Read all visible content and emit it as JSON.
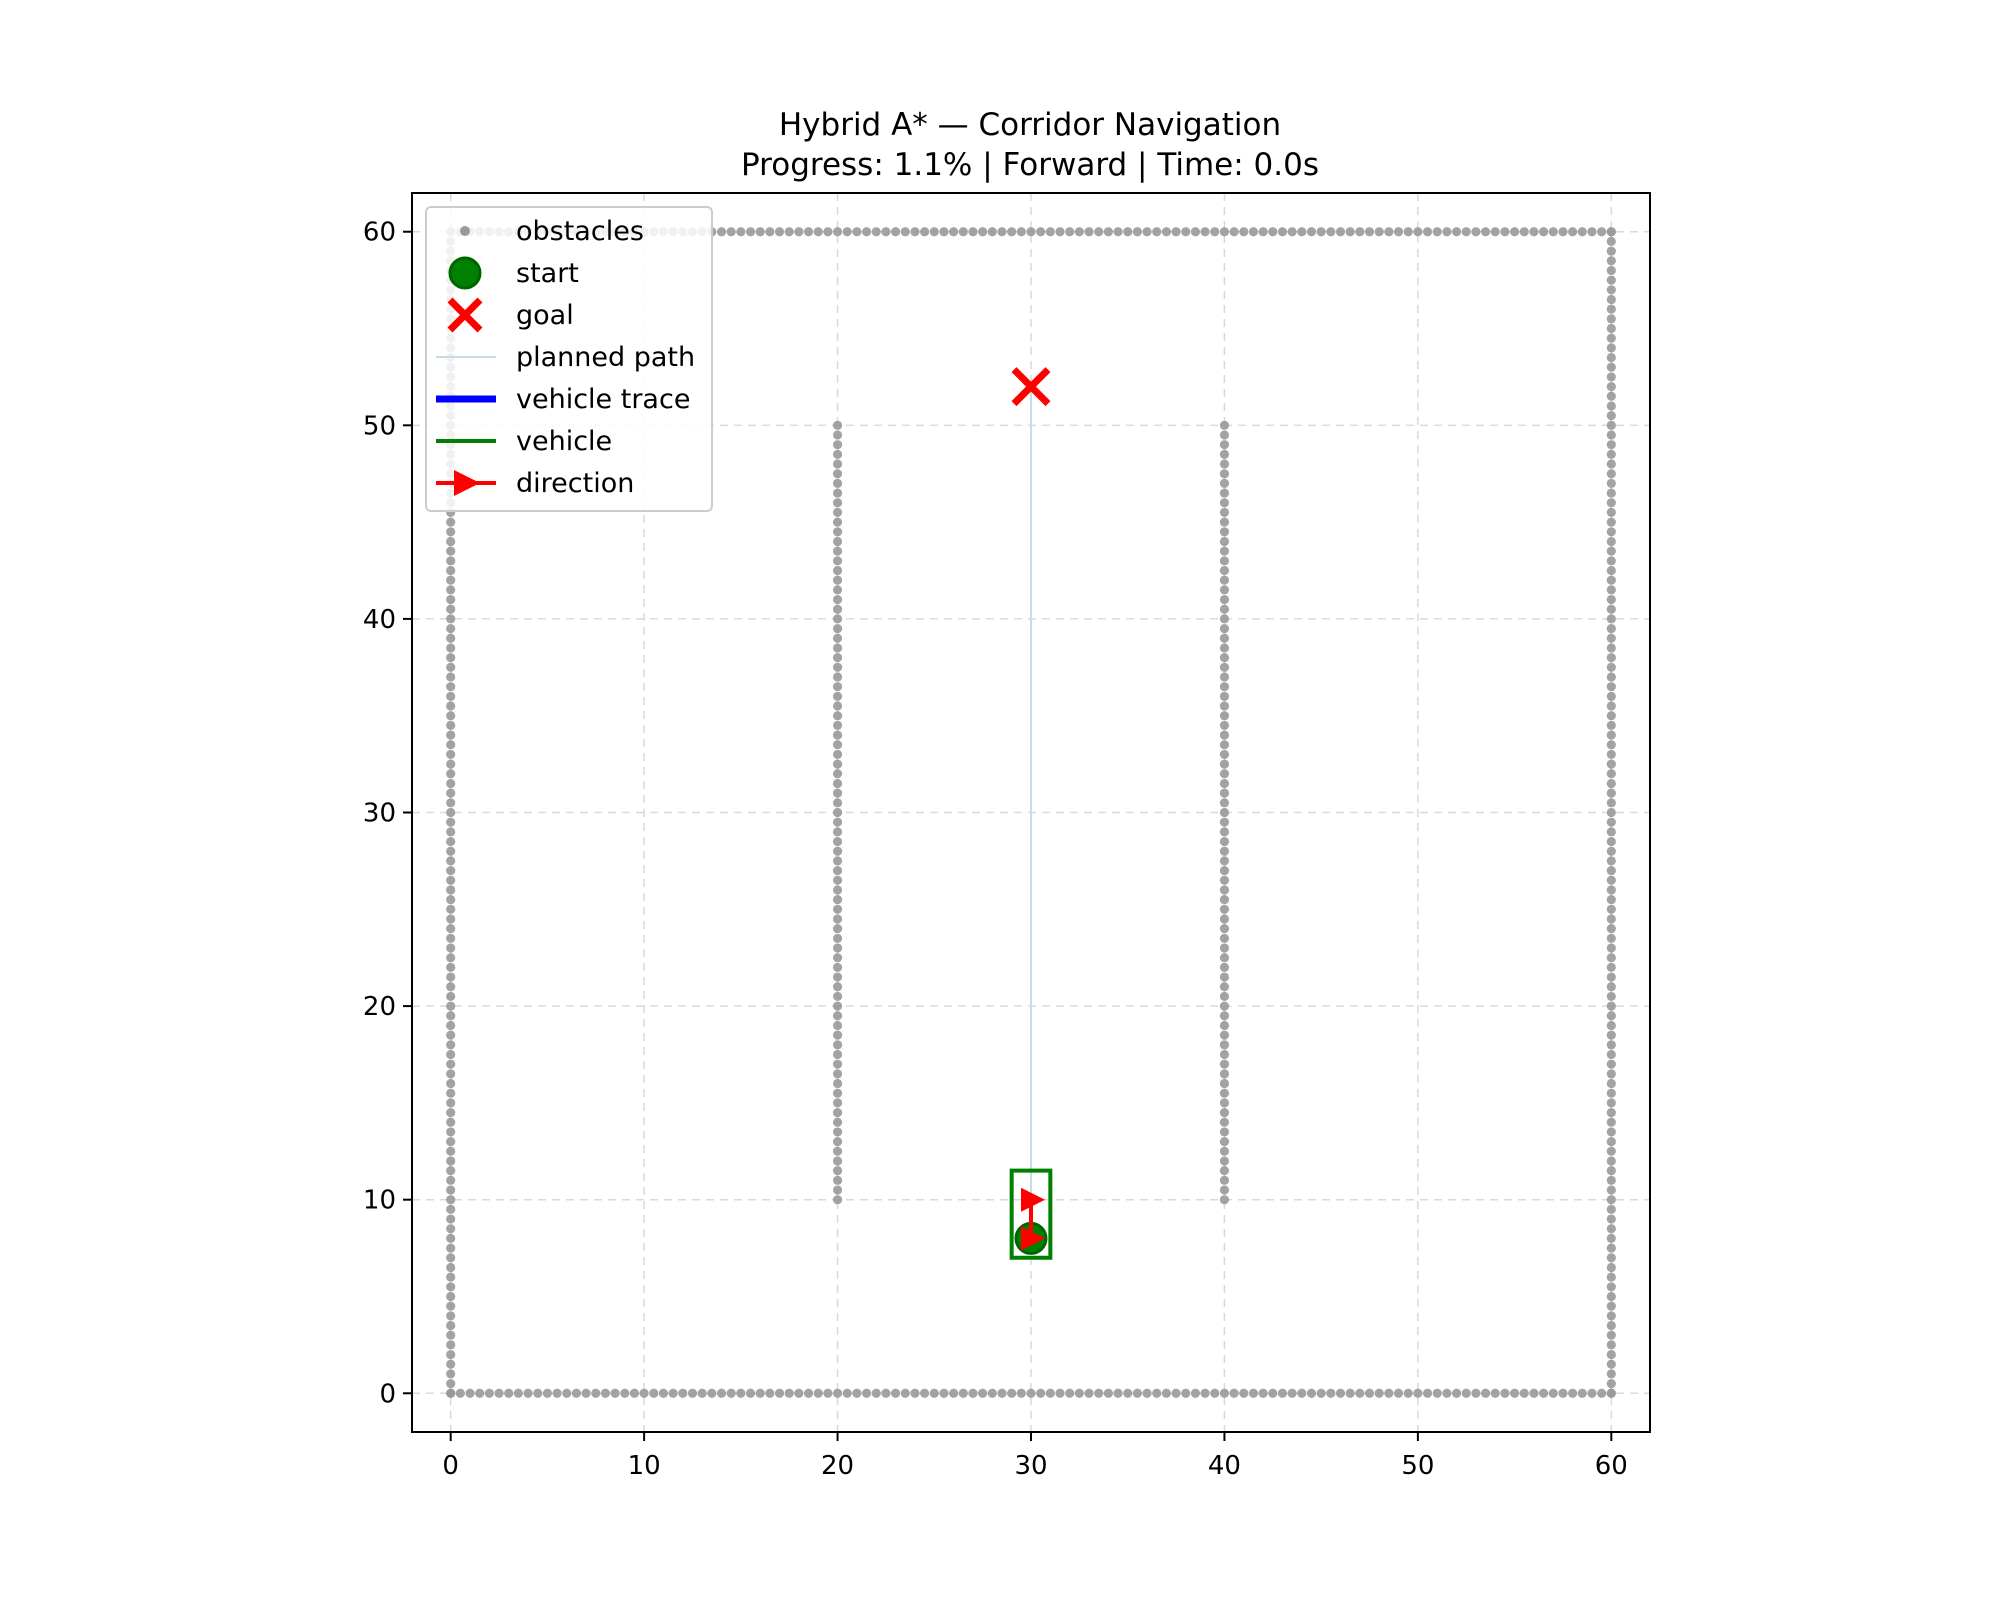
{
  "chart_data": {
    "type": "scatter",
    "title": "Hybrid A* — Corridor Navigation",
    "subtitle": "Progress: 1.1% | Forward | Time: 0.0s",
    "xlabel": "",
    "ylabel": "",
    "xlim": [
      -2,
      62
    ],
    "ylim": [
      -2,
      62
    ],
    "xticks": [
      0,
      10,
      20,
      30,
      40,
      50,
      60
    ],
    "yticks": [
      0,
      10,
      20,
      30,
      40,
      50,
      60
    ],
    "grid": true,
    "legend_position": "top-left",
    "legend": [
      {
        "label": "obstacles",
        "marker": "dot",
        "color": "#999999"
      },
      {
        "label": "start",
        "marker": "circle",
        "color": "#008000"
      },
      {
        "label": "goal",
        "marker": "x",
        "color": "#ff0000"
      },
      {
        "label": "planned path",
        "marker": "line-thin",
        "color": "#add8e6"
      },
      {
        "label": "vehicle trace",
        "marker": "line-thick",
        "color": "#0000ff"
      },
      {
        "label": "vehicle",
        "marker": "line",
        "color": "#008000"
      },
      {
        "label": "direction",
        "marker": "arrow",
        "color": "#ff0000"
      }
    ],
    "obstacles": {
      "step": 0.5,
      "segments": [
        {
          "from": [
            0,
            0
          ],
          "to": [
            60,
            0
          ]
        },
        {
          "from": [
            0,
            60
          ],
          "to": [
            60,
            60
          ]
        },
        {
          "from": [
            0,
            0
          ],
          "to": [
            0,
            60
          ]
        },
        {
          "from": [
            60,
            0
          ],
          "to": [
            60,
            60
          ]
        },
        {
          "from": [
            20,
            10
          ],
          "to": [
            20,
            50
          ]
        },
        {
          "from": [
            40,
            10
          ],
          "to": [
            40,
            50
          ]
        }
      ]
    },
    "start": [
      30,
      8
    ],
    "goal": [
      30,
      52
    ],
    "planned_path": [
      [
        30,
        8
      ],
      [
        30,
        52
      ]
    ],
    "vehicle_trace": [
      [
        30,
        8
      ]
    ],
    "vehicle": {
      "x": 30,
      "y": 8,
      "heading_deg": 90,
      "length": 4.5,
      "width": 2
    },
    "direction_markers": [
      [
        30,
        8
      ],
      [
        30,
        10
      ]
    ]
  }
}
